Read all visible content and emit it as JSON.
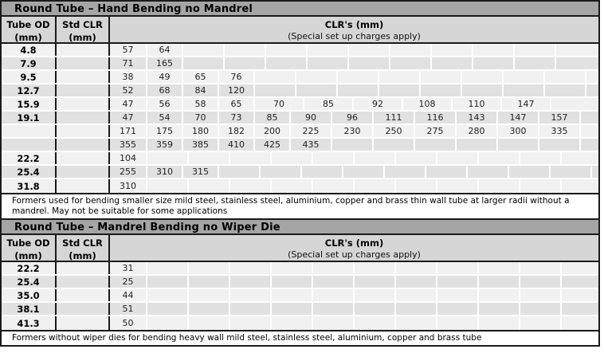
{
  "colors": {
    "title_bar_bg": "#a5a5a5",
    "header_bg": "#d6d6d6",
    "row_light_bg": "#f1f1f1",
    "row_dark_bg": "#e1e1e1",
    "border_dark": "#1a1a1a",
    "gridline": "#ffffff"
  },
  "tables": [
    {
      "title": "Round Tube – Hand Bending no Mandrel",
      "headers": {
        "tube_od_line1": "Tube OD",
        "tube_od_line2": "(mm)",
        "std_clr_line1": "Std CLR",
        "std_clr_line2": "(mm)",
        "clr_line1": "CLR's (mm)",
        "clr_line2": "(Special set up charges apply)"
      },
      "rows": [
        {
          "od": "4.8",
          "std": "",
          "clrs": [
            "57",
            "64"
          ]
        },
        {
          "od": "7.9",
          "std": "",
          "clrs": [
            "71",
            "165"
          ]
        },
        {
          "od": "9.5",
          "std": "",
          "clrs": [
            "38",
            "49",
            "65",
            "76"
          ]
        },
        {
          "od": "12.7",
          "std": "",
          "clrs": [
            "52",
            "68",
            "84",
            "120"
          ]
        },
        {
          "od": "15.9",
          "std": "",
          "clrs": [
            "47",
            "56",
            "58",
            "65",
            "70",
            "85",
            "92",
            "108",
            "110",
            "147"
          ]
        },
        {
          "od": "19.1",
          "std": "",
          "clrs": [
            "47",
            "54",
            "70",
            "73",
            "85",
            "90",
            "96",
            "111",
            "116",
            "143",
            "147",
            "157"
          ]
        },
        {
          "od": "",
          "std": "",
          "clrs": [
            "171",
            "175",
            "180",
            "182",
            "200",
            "225",
            "230",
            "250",
            "275",
            "280",
            "300",
            "335"
          ]
        },
        {
          "od": "",
          "std": "",
          "clrs": [
            "355",
            "359",
            "385",
            "410",
            "425",
            "435"
          ]
        },
        {
          "od": "22.2",
          "std": "",
          "clrs": [
            "104"
          ]
        },
        {
          "od": "25.4",
          "std": "",
          "clrs": [
            "255",
            "310",
            "315"
          ]
        },
        {
          "od": "31.8",
          "std": "",
          "clrs": [
            "310"
          ]
        }
      ],
      "footnote": "Formers used for bending smaller size mild steel, stainless steel, aluminium, copper and brass thin wall tube at larger radii without a mandrel.   May not be suitable for some applications"
    },
    {
      "title": "Round Tube – Mandrel Bending no Wiper Die",
      "headers": {
        "tube_od_line1": "Tube OD",
        "tube_od_line2": "(mm)",
        "std_clr_line1": "Std CLR",
        "std_clr_line2": "(mm)",
        "clr_line1": "CLR's (mm)",
        "clr_line2": "(Special set up charges apply)"
      },
      "rows": [
        {
          "od": "22.2",
          "std": "",
          "clrs": [
            "31"
          ]
        },
        {
          "od": "25.4",
          "std": "",
          "clrs": [
            "25"
          ]
        },
        {
          "od": "35.0",
          "std": "",
          "clrs": [
            "44"
          ]
        },
        {
          "od": "38.1",
          "std": "",
          "clrs": [
            "51"
          ]
        },
        {
          "od": "41.3",
          "std": "",
          "clrs": [
            "50"
          ]
        }
      ],
      "footnote": "Formers without wiper dies for bending heavy wall mild steel, stainless steel, aluminium, copper and brass tube"
    }
  ]
}
